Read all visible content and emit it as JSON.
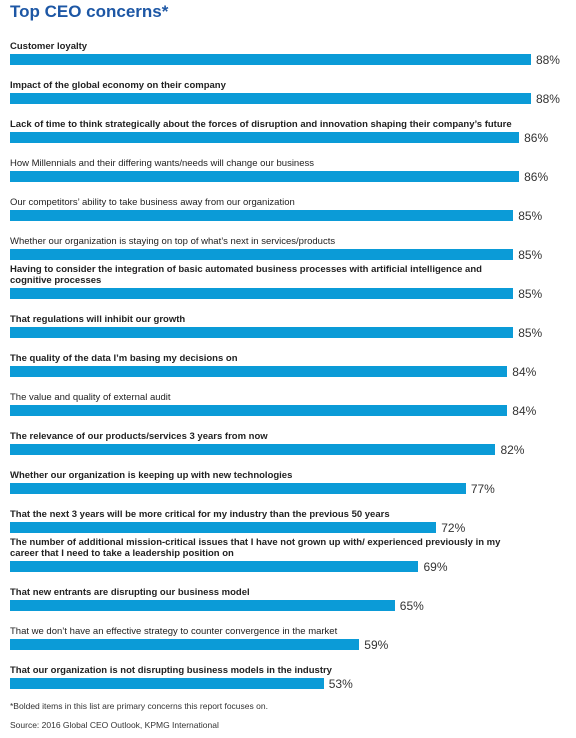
{
  "chart_data": {
    "type": "bar",
    "title": "Top CEO concerns*",
    "categories": [
      "Customer loyalty",
      "Impact of the global economy on their company",
      "Lack of time to think strategically about the forces of disruption and innovation shaping their company’s future",
      "How Millennials and their differing wants/needs will change our business",
      "Our competitors’ ability to take business away from our organization",
      "Whether our organization is staying on top of what’s next in services/products",
      "Having to consider the integration of basic automated business processes with artificial intelligence and cognitive processes",
      "That regulations will inhibit our growth",
      "The quality of the data I’m basing my decisions on",
      "The value and quality of external audit",
      "The relevance of our products/services 3 years from now",
      "Whether our organization is keeping up with new technologies",
      "That the next 3 years will be more critical for my industry than the previous 50 years",
      "The number of additional mission-critical issues that I have not grown up with/ experienced previously in my career that I need to take a leadership position on",
      "That new entrants are disrupting our business model",
      "That we don’t have an effective strategy to counter convergence in the market",
      "That our organization is not disrupting business models in the industry"
    ],
    "bold": [
      true,
      true,
      true,
      false,
      false,
      false,
      true,
      true,
      true,
      false,
      true,
      true,
      true,
      true,
      true,
      false,
      true
    ],
    "values": [
      88,
      88,
      86,
      86,
      85,
      85,
      85,
      85,
      84,
      84,
      82,
      77,
      72,
      69,
      65,
      59,
      53
    ],
    "value_labels": [
      "88%",
      "88%",
      "86%",
      "86%",
      "85%",
      "85%",
      "85%",
      "85%",
      "84%",
      "84%",
      "82%",
      "77%",
      "72%",
      "69%",
      "65%",
      "59%",
      "53%"
    ],
    "color": "#0b9bd7",
    "footnote": "*Bolded items in this list are primary concerns this report focuses on.",
    "source": "Source: 2016 Global CEO Outlook, KPMG International"
  }
}
